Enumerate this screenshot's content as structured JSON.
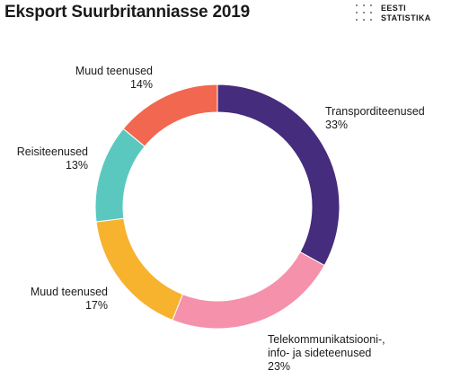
{
  "title": "Eksport Suurbritanniasse 2019",
  "logo": {
    "line1": "EESTI",
    "line2": "STATISTIKA"
  },
  "chart_data": {
    "type": "pie",
    "title": "Eksport Suurbritanniasse 2019",
    "slices": [
      {
        "name_lines": [
          "Transporditeenused"
        ],
        "value": 33,
        "value_label": "33%",
        "color": "#452c7c"
      },
      {
        "name_lines": [
          "Telekommunikatsiooni-,",
          "info- ja sideteenused"
        ],
        "value": 23,
        "value_label": "23%",
        "color": "#f591ab"
      },
      {
        "name_lines": [
          "Muud teenused"
        ],
        "value": 17,
        "value_label": "17%",
        "color": "#f7b22e"
      },
      {
        "name_lines": [
          "Reisiteenused"
        ],
        "value": 13,
        "value_label": "13%",
        "color": "#5bc8bf"
      },
      {
        "name_lines": [
          "Muud teenused"
        ],
        "value": 14,
        "value_label": "14%",
        "color": "#f26750"
      }
    ],
    "start_angle_deg": 0,
    "direction": "clockwise",
    "donut": true
  }
}
